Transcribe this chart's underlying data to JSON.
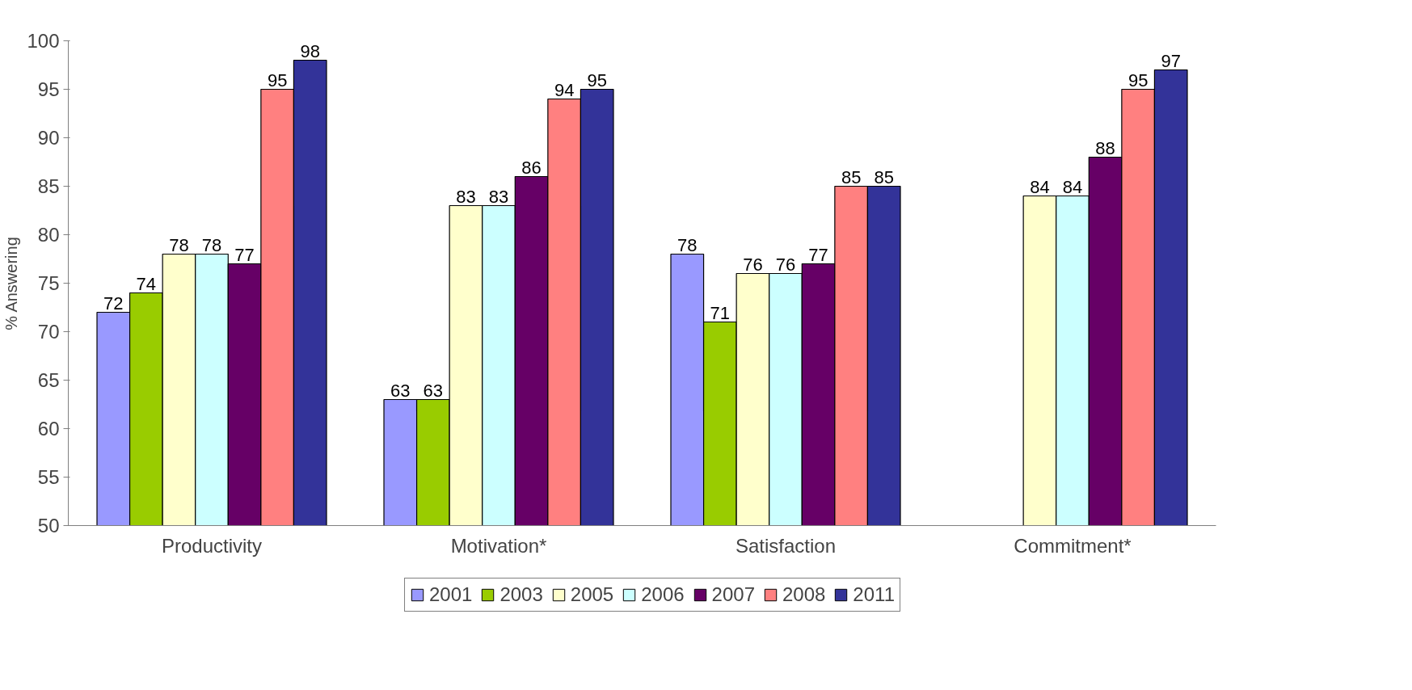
{
  "chart_data": {
    "type": "bar",
    "ylabel": "% Answering",
    "categories": [
      "Productivity",
      "Motivation*",
      "Satisfaction",
      "Commitment*"
    ],
    "series": [
      {
        "name": "2001",
        "color": "#9999ff",
        "values": [
          72,
          63,
          78,
          null
        ]
      },
      {
        "name": "2003",
        "color": "#99cc00",
        "values": [
          74,
          63,
          71,
          null
        ]
      },
      {
        "name": "2005",
        "color": "#ffffcc",
        "values": [
          78,
          83,
          76,
          84
        ]
      },
      {
        "name": "2006",
        "color": "#ccffff",
        "values": [
          78,
          83,
          76,
          84
        ]
      },
      {
        "name": "2007",
        "color": "#660066",
        "values": [
          77,
          86,
          77,
          88
        ]
      },
      {
        "name": "2008",
        "color": "#ff8080",
        "values": [
          95,
          94,
          85,
          95
        ]
      },
      {
        "name": "2011",
        "color": "#333399",
        "values": [
          98,
          95,
          85,
          97
        ]
      }
    ],
    "ylim": [
      50,
      100
    ],
    "yticks": [
      50,
      55,
      60,
      65,
      70,
      75,
      80,
      85,
      90,
      95,
      100
    ],
    "data_labels": true,
    "grid": false,
    "legend": "bottom"
  }
}
